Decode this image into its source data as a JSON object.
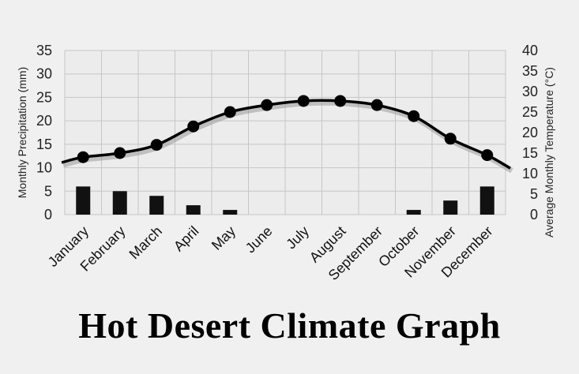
{
  "chart_data": {
    "type": "bar+line",
    "title": "Hot Desert Climate Graph",
    "categories": [
      "January",
      "February",
      "March",
      "April",
      "May",
      "June",
      "July",
      "August",
      "September",
      "October",
      "November",
      "December"
    ],
    "bar_series": {
      "name": "Monthly Precipitation",
      "axis": "left",
      "values": [
        6,
        5,
        4,
        2,
        1,
        0,
        0,
        0,
        0,
        1,
        3,
        6
      ],
      "color": "#111111"
    },
    "line_series": {
      "name": "Average Monthly Temperature",
      "axis": "right",
      "values": [
        14,
        15,
        17,
        21.5,
        25,
        26.7,
        27.7,
        27.7,
        26.7,
        24,
        18.5,
        14.5
      ],
      "color": "#000000"
    },
    "y_left": {
      "label": "Monthly Precipitation  (mm)",
      "min": 0,
      "max": 35,
      "ticks": [
        0,
        5,
        10,
        15,
        20,
        25,
        30,
        35
      ]
    },
    "y_right": {
      "label": "Average Monthly  Temperature (°C)",
      "min": 0,
      "max": 40,
      "ticks": [
        0,
        5,
        10,
        15,
        20,
        25,
        30,
        35,
        40
      ]
    },
    "grid": true,
    "legend": "none"
  }
}
